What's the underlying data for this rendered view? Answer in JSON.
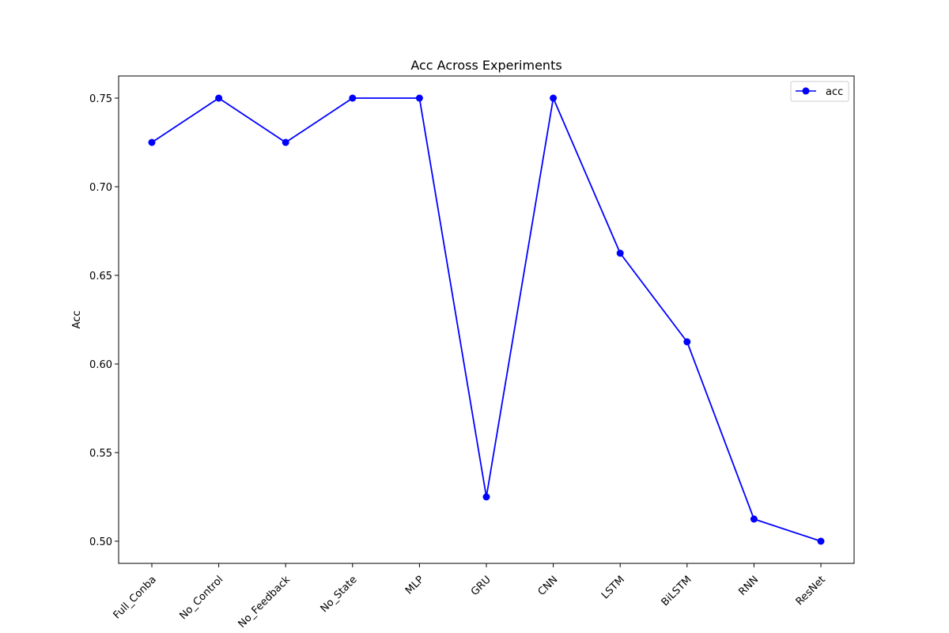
{
  "chart_data": {
    "type": "line",
    "title": "Acc Across Experiments",
    "xlabel": "",
    "ylabel": "Acc",
    "categories": [
      "Full_Conba",
      "No_Control",
      "No_Feedback",
      "No_State",
      "MLP",
      "GRU",
      "CNN",
      "LSTM",
      "BiLSTM",
      "RNN",
      "ResNet"
    ],
    "series": [
      {
        "name": "acc",
        "color": "#0000ff",
        "marker": "circle",
        "values": [
          0.725,
          0.75,
          0.725,
          0.75,
          0.75,
          0.525,
          0.75,
          0.6625,
          0.6125,
          0.5125,
          0.5
        ]
      }
    ],
    "ylim": [
      0.4875,
      0.7625
    ],
    "yticks": [
      0.5,
      0.55,
      0.6,
      0.65,
      0.7,
      0.75
    ],
    "ytick_labels": [
      "0.50",
      "0.55",
      "0.60",
      "0.65",
      "0.70",
      "0.75"
    ],
    "grid": false,
    "legend_position": "top-right"
  }
}
